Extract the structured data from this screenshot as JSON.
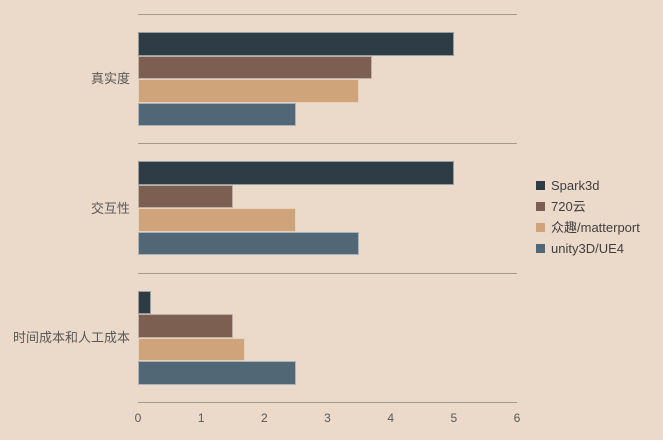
{
  "chart_data": {
    "type": "bar",
    "orientation": "horizontal",
    "title": "",
    "xlabel": "",
    "ylabel": "",
    "categories": [
      "真实度",
      "交互性",
      "时间成本和人工成本"
    ],
    "series": [
      {
        "name": "Spark3d",
        "color": "#2E3D45",
        "values": [
          5,
          5,
          0.2
        ]
      },
      {
        "name": "720云",
        "color": "#7D5F52",
        "values": [
          3.7,
          1.5,
          1.5
        ]
      },
      {
        "name": "众趣/matterport",
        "color": "#CFA47B",
        "values": [
          3.5,
          2.5,
          1.7
        ]
      },
      {
        "name": "unity3D/UE4",
        "color": "#516776",
        "values": [
          2.5,
          3.5,
          2.5
        ]
      }
    ],
    "xlim": [
      0,
      6
    ],
    "x_ticks": [
      0,
      1,
      2,
      3,
      4,
      5,
      6
    ],
    "legend_position": "right",
    "grid": "horizontal category separator lines only",
    "background_color": "#EBDACA",
    "axis_line_color": "#A09A94",
    "label_text_color": "#595959",
    "legend_text_color": "#3F3F3F"
  }
}
